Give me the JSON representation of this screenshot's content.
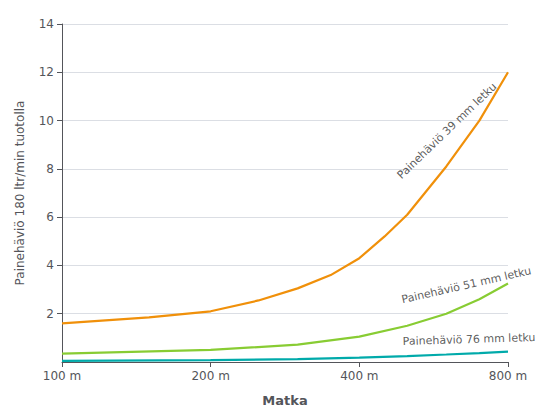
{
  "chart_data": {
    "type": "line",
    "xlabel": "Matka",
    "ylabel": "Painehäviö 180 ltr/min tuotolla",
    "log": "x",
    "xlim": [
      100,
      800
    ],
    "ylim": [
      0,
      14
    ],
    "xticks": [
      {
        "value": 100,
        "label": "100 m"
      },
      {
        "value": 200,
        "label": "200 m"
      },
      {
        "value": 400,
        "label": "400 m"
      },
      {
        "value": 800,
        "label": "800 m"
      }
    ],
    "yticks": [
      2,
      4,
      6,
      8,
      10,
      12,
      14
    ],
    "grid": "y",
    "series": [
      {
        "name": "Painehäviö 39 mm letku",
        "color": "#F0900A",
        "x": [
          100,
          150,
          200,
          250,
          300,
          350,
          400,
          450,
          500,
          600,
          700,
          800
        ],
        "values": [
          1.6,
          1.85,
          2.1,
          2.55,
          3.05,
          3.6,
          4.3,
          5.2,
          6.1,
          8.1,
          10.0,
          12.0
        ]
      },
      {
        "name": "Painehäviö 51 mm letku",
        "color": "#88CC33",
        "x": [
          100,
          200,
          300,
          400,
          500,
          600,
          700,
          800
        ],
        "values": [
          0.35,
          0.5,
          0.72,
          1.05,
          1.5,
          2.0,
          2.6,
          3.25
        ]
      },
      {
        "name": "Painehäviö 76 mm letku",
        "color": "#00AAAA",
        "x": [
          100,
          200,
          300,
          400,
          500,
          600,
          700,
          800
        ],
        "values": [
          0.05,
          0.08,
          0.12,
          0.18,
          0.24,
          0.31,
          0.37,
          0.43
        ]
      }
    ],
    "annotations": [
      {
        "text": "Painehäviö 39 mm letku",
        "x": 490,
        "y": 7.5
      },
      {
        "text": "Painehäviö 51 mm letku",
        "x": 490,
        "y": 2.35
      },
      {
        "text": "Painehäviö 76 mm letku",
        "x": 490,
        "y": 0.62
      }
    ]
  }
}
